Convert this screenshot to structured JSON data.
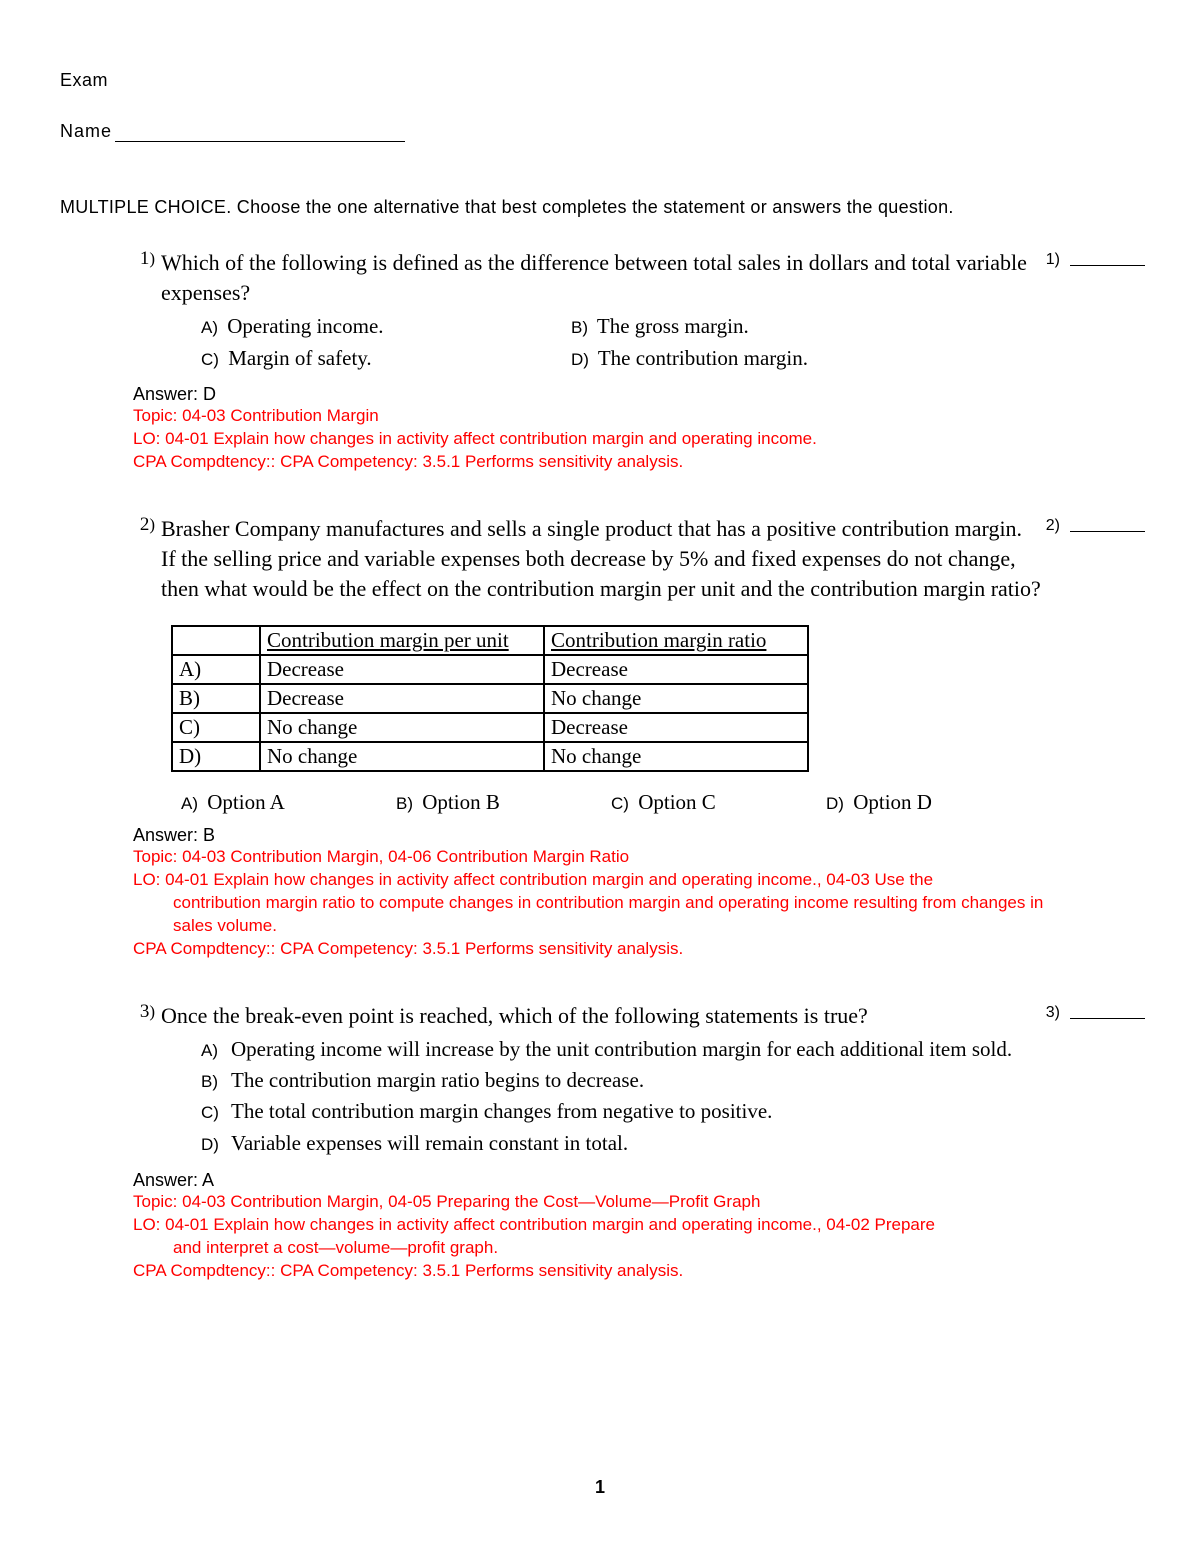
{
  "header": {
    "exam_label": "Exam",
    "name_label": "Name"
  },
  "instructions": "MULTIPLE CHOICE.  Choose the one alternative that best completes the statement or answers the question.",
  "questions": [
    {
      "num": "1",
      "side_num": "1",
      "text": "Which of the following is defined as the difference between total sales in dollars and total variable expenses?",
      "choices_layout": "2col",
      "choices": [
        {
          "letter": "A)",
          "text": "Operating income."
        },
        {
          "letter": "B)",
          "text": "The gross margin."
        },
        {
          "letter": "C)",
          "text": "Margin of safety."
        },
        {
          "letter": "D)",
          "text": "The contribution margin."
        }
      ],
      "answer": "Answer:  D",
      "topic": "Topic:  04-03 Contribution Margin",
      "lo": "LO:  04-01 Explain how changes in activity affect contribution margin and operating income.",
      "cpa": "CPA Compdtency::  CPA Competency: 3.5.1 Performs sensitivity analysis."
    },
    {
      "num": "2",
      "side_num": "2",
      "text": "Brasher Company manufactures and sells a single product that has a positive contribution margin. If the selling price and variable expenses both decrease by 5% and fixed expenses do not change, then what would be the effect on the contribution margin per unit and the contribution margin ratio?",
      "table": {
        "headers": [
          "",
          "Contribution margin per unit",
          "Contribution margin ratio"
        ],
        "rows": [
          [
            "A)",
            "Decrease",
            "Decrease"
          ],
          [
            "B)",
            "Decrease",
            "No change"
          ],
          [
            "C)",
            "No change",
            "Decrease"
          ],
          [
            "D)",
            "No change",
            "No change"
          ]
        ]
      },
      "inline_options": [
        {
          "letter": "A)",
          "text": "Option A"
        },
        {
          "letter": "B)",
          "text": "Option B"
        },
        {
          "letter": "C)",
          "text": "Option C"
        },
        {
          "letter": "D)",
          "text": "Option D"
        }
      ],
      "answer": "Answer:  B",
      "topic": "Topic:  04-03 Contribution Margin, 04-06 Contribution Margin Ratio",
      "lo": "LO:  04-01 Explain how changes in activity affect contribution margin and operating income., 04-03 Use the",
      "lo_cont": "contribution margin ratio to compute changes in contribution margin and operating income resulting from changes in sales volume.",
      "cpa": "CPA Compdtency::  CPA Competency: 3.5.1 Performs sensitivity analysis."
    },
    {
      "num": "3",
      "side_num": "3",
      "text": "Once the break-even point is reached, which of the following statements is true?",
      "choices_layout": "1col",
      "choices": [
        {
          "letter": "A)",
          "text": "Operating income will increase by the unit contribution margin for each additional item sold."
        },
        {
          "letter": "B)",
          "text": "The contribution margin ratio begins to decrease."
        },
        {
          "letter": "C)",
          "text": "The total contribution margin changes from negative to positive."
        },
        {
          "letter": "D)",
          "text": "Variable expenses will remain constant in total."
        }
      ],
      "answer": "Answer:  A",
      "topic": "Topic:  04-03 Contribution Margin, 04-05 Preparing the Cost—Volume—Profit Graph",
      "lo": "LO:  04-01 Explain how changes in activity affect contribution margin and operating income., 04-02 Prepare",
      "lo_cont": "and interpret a cost—volume—profit graph.",
      "cpa": "CPA Compdtency::  CPA Competency: 3.5.1 Performs sensitivity analysis."
    }
  ],
  "page_number": "1"
}
